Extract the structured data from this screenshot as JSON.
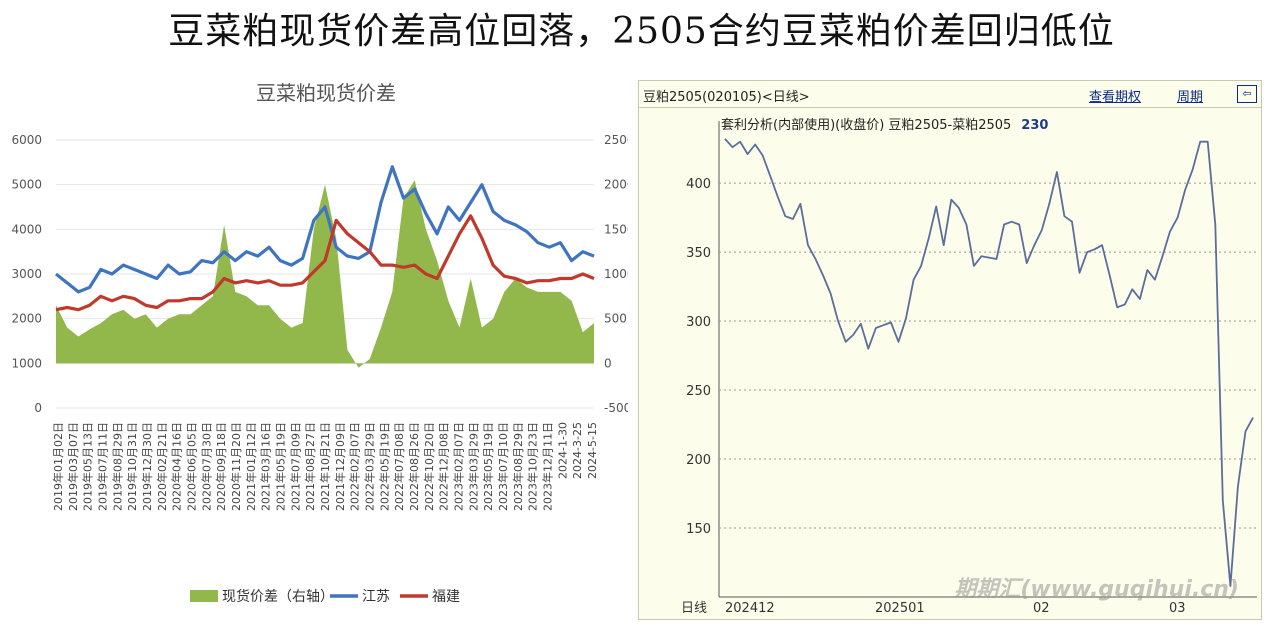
{
  "headline": "豆菜粕现货价差高位回落，2505合约豆菜粕价差回归低位",
  "watermark": "期期汇(www.guqihui.cn)",
  "left_chart_title": "豆菜粕现货价差",
  "right_header": {
    "code_label": "豆粕2505(020105)<日线>",
    "link_options": "查看期权",
    "link_period": "周期",
    "btn_icon": "⇦"
  },
  "right_subtitle": {
    "text": "套利分析(内部使用)(收盘价) 豆粕2505-菜粕2505",
    "value": "230"
  },
  "chart_data": [
    {
      "type": "line",
      "title": "豆菜粕现货价差",
      "ylim": [
        0,
        6000
      ],
      "yticks": [
        0,
        1000,
        2000,
        3000,
        4000,
        5000,
        6000
      ],
      "y2lim": [
        -500,
        2500
      ],
      "y2ticks": [
        -500,
        0,
        500,
        1000,
        1500,
        2000,
        2500
      ],
      "x_tick_labels": [
        "2019年01月02日",
        "2019年03月07日",
        "2019年05月13日",
        "2019年07月11日",
        "2019年08月29日",
        "2019年10月31日",
        "2019年12月30日",
        "2020年02月21日",
        "2020年04月16日",
        "2020年06月05日",
        "2020年07月30日",
        "2020年09月18日",
        "2020年11月20日",
        "2021年01月12日",
        "2021年03月16日",
        "2021年05月19日",
        "2021年07月09日",
        "2021年08月27日",
        "2021年10月21日",
        "2021年12月09日",
        "2022年02月07日",
        "2022年03月29日",
        "2022年05月19日",
        "2022年07月08日",
        "2022年08月26日",
        "2022年10月20日",
        "2022年12月08日",
        "2023年02月07日",
        "2023年03月29日",
        "2023年05月19日",
        "2023年07月10日",
        "2023年08月29日",
        "2023年10月23日",
        "2023年12月11日",
        "2024-1-30",
        "2024-3-25",
        "2024-5-15"
      ],
      "x_count": 37,
      "legend": [
        "现货价差（右轴）",
        "江苏",
        "福建"
      ],
      "legend_position": "bottom",
      "series": [
        {
          "name": "现货价差（右轴）",
          "axis": "right",
          "kind": "area",
          "color": "#92b84c",
          "values": [
            650,
            400,
            300,
            380,
            450,
            550,
            600,
            500,
            550,
            400,
            500,
            550,
            550,
            650,
            750,
            1550,
            800,
            750,
            650,
            650,
            500,
            400,
            450,
            1500,
            2000,
            1400,
            150,
            -50,
            50,
            400,
            800,
            1850,
            2050,
            1500,
            1150,
            700,
            400,
            950,
            400,
            500,
            800,
            950,
            850,
            800,
            800,
            800,
            700,
            350,
            450
          ]
        },
        {
          "name": "江苏",
          "axis": "left",
          "kind": "line",
          "color": "#3f74c0",
          "values": [
            3000,
            2800,
            2600,
            2700,
            3100,
            3000,
            3200,
            3100,
            3000,
            2900,
            3200,
            3000,
            3050,
            3300,
            3250,
            3500,
            3300,
            3500,
            3400,
            3600,
            3300,
            3200,
            3350,
            4200,
            4500,
            3600,
            3400,
            3350,
            3500,
            4600,
            5400,
            4700,
            4900,
            4350,
            3900,
            4500,
            4200,
            4600,
            5000,
            4400,
            4200,
            4100,
            3950,
            3700,
            3600,
            3700,
            3300,
            3500,
            3400
          ]
        },
        {
          "name": "福建",
          "axis": "left",
          "kind": "line",
          "color": "#c0392b",
          "values": [
            2200,
            2250,
            2200,
            2300,
            2500,
            2400,
            2500,
            2450,
            2300,
            2250,
            2400,
            2400,
            2450,
            2450,
            2600,
            2900,
            2800,
            2850,
            2800,
            2850,
            2750,
            2750,
            2800,
            3050,
            3300,
            4200,
            3900,
            3700,
            3500,
            3200,
            3200,
            3150,
            3200,
            3000,
            2900,
            3400,
            3900,
            4300,
            3800,
            3200,
            2950,
            2900,
            2800,
            2850,
            2850,
            2900,
            2900,
            3000,
            2900
          ]
        }
      ]
    },
    {
      "type": "line",
      "title": "套利分析(内部使用)(收盘价) 豆粕2505-菜粕2505",
      "ylim": [
        100,
        445
      ],
      "yticks": [
        150,
        200,
        250,
        300,
        350,
        400
      ],
      "x_tick_labels": [
        "日线",
        "202412",
        "202501",
        "02",
        "03"
      ],
      "series": [
        {
          "name": "豆粕2505-菜粕2505",
          "color": "#5a6e9a",
          "values": [
            432,
            426,
            430,
            421,
            428,
            420,
            405,
            390,
            376,
            374,
            385,
            355,
            345,
            333,
            320,
            300,
            285,
            290,
            298,
            280,
            295,
            297,
            299,
            285,
            302,
            330,
            340,
            360,
            383,
            355,
            388,
            382,
            370,
            340,
            347,
            346,
            345,
            370,
            372,
            370,
            342,
            355,
            366,
            385,
            408,
            376,
            372,
            335,
            350,
            352,
            355,
            333,
            310,
            312,
            323,
            316,
            337,
            330,
            347,
            365,
            375,
            395,
            410,
            430,
            430,
            370,
            170,
            108,
            180,
            220,
            230
          ]
        }
      ]
    }
  ]
}
